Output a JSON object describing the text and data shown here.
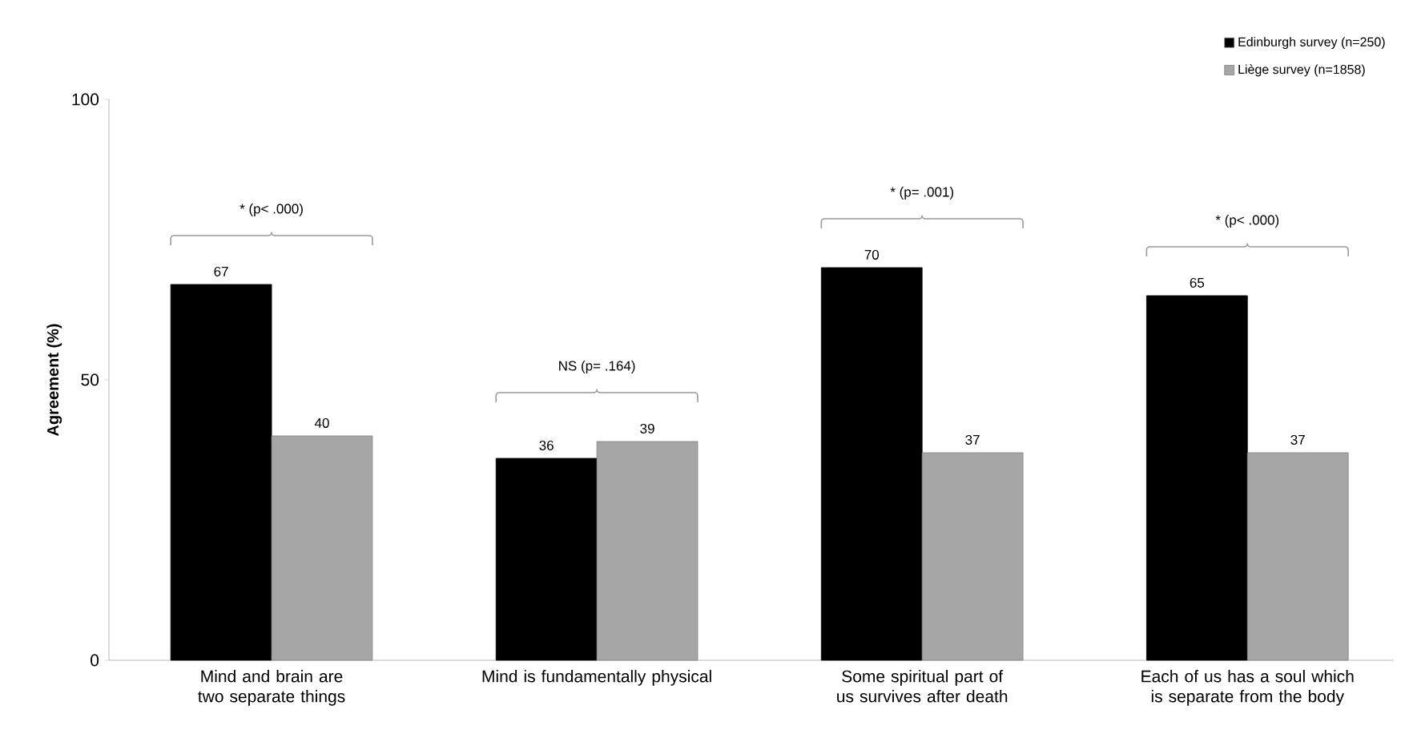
{
  "chart_data": {
    "type": "bar",
    "ylabel": "Agreement (%)",
    "categories": [
      "Mind and brain are two separate things",
      "Mind is fundamentally physical",
      "Some spiritual part of us survives after death",
      "Each of us has a soul which is separate from the body"
    ],
    "series": [
      {
        "name": "Edinburgh survey (n=250)",
        "color": "#000000",
        "values": [
          67,
          36,
          70,
          65
        ]
      },
      {
        "name": "Liège survey (n=1858)",
        "color": "#a6a6a6",
        "values": [
          40,
          39,
          37,
          37
        ]
      }
    ],
    "ylim": [
      0,
      100
    ],
    "yticks": [
      0,
      50,
      100
    ],
    "data_labels": true,
    "legend": "top right",
    "annotations": [
      "* (p< .000)",
      "NS (p= .164)",
      "* (p= .001)",
      "* (p< .000)"
    ]
  }
}
